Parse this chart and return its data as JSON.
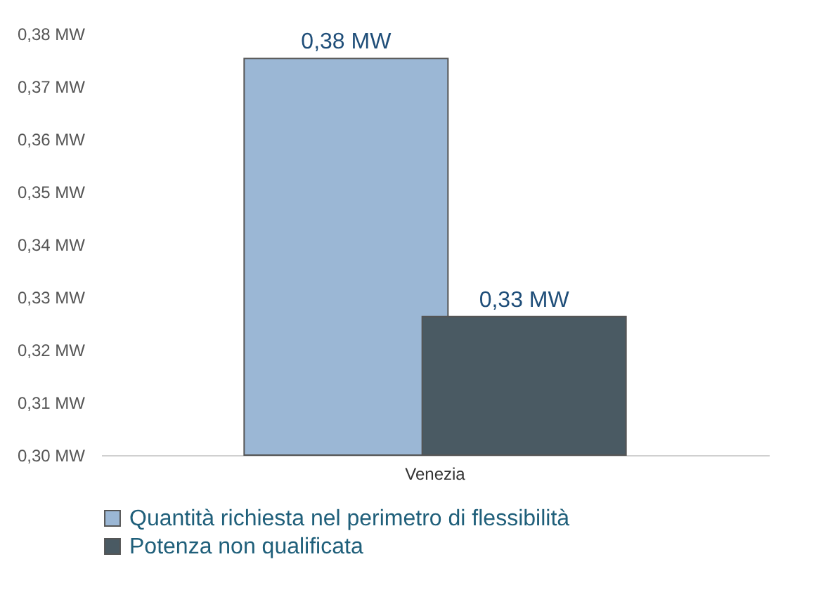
{
  "chart_data": {
    "type": "bar",
    "categories": [
      "Venezia"
    ],
    "series": [
      {
        "name": "Quantità richiesta nel perimetro di flessibilità",
        "color": "#9bb7d5",
        "values": [
          0.3753
        ],
        "value_labels": [
          "0,38  MW"
        ]
      },
      {
        "name": "Potenza non qualificata",
        "color": "#4a5a63",
        "values": [
          0.3263
        ],
        "value_labels": [
          "0,33  MW"
        ]
      }
    ],
    "ylim": [
      0.3,
      0.38
    ],
    "yticks": [
      {
        "value": 0.3,
        "label": "0,30  MW"
      },
      {
        "value": 0.31,
        "label": "0,31  MW"
      },
      {
        "value": 0.32,
        "label": "0,32  MW"
      },
      {
        "value": 0.33,
        "label": "0,33  MW"
      },
      {
        "value": 0.34,
        "label": "0,34  MW"
      },
      {
        "value": 0.35,
        "label": "0,35  MW"
      },
      {
        "value": 0.36,
        "label": "0,36  MW"
      },
      {
        "value": 0.37,
        "label": "0,37  MW"
      },
      {
        "value": 0.38,
        "label": "0,38  MW"
      }
    ],
    "grid": false,
    "legend": "bottom"
  }
}
